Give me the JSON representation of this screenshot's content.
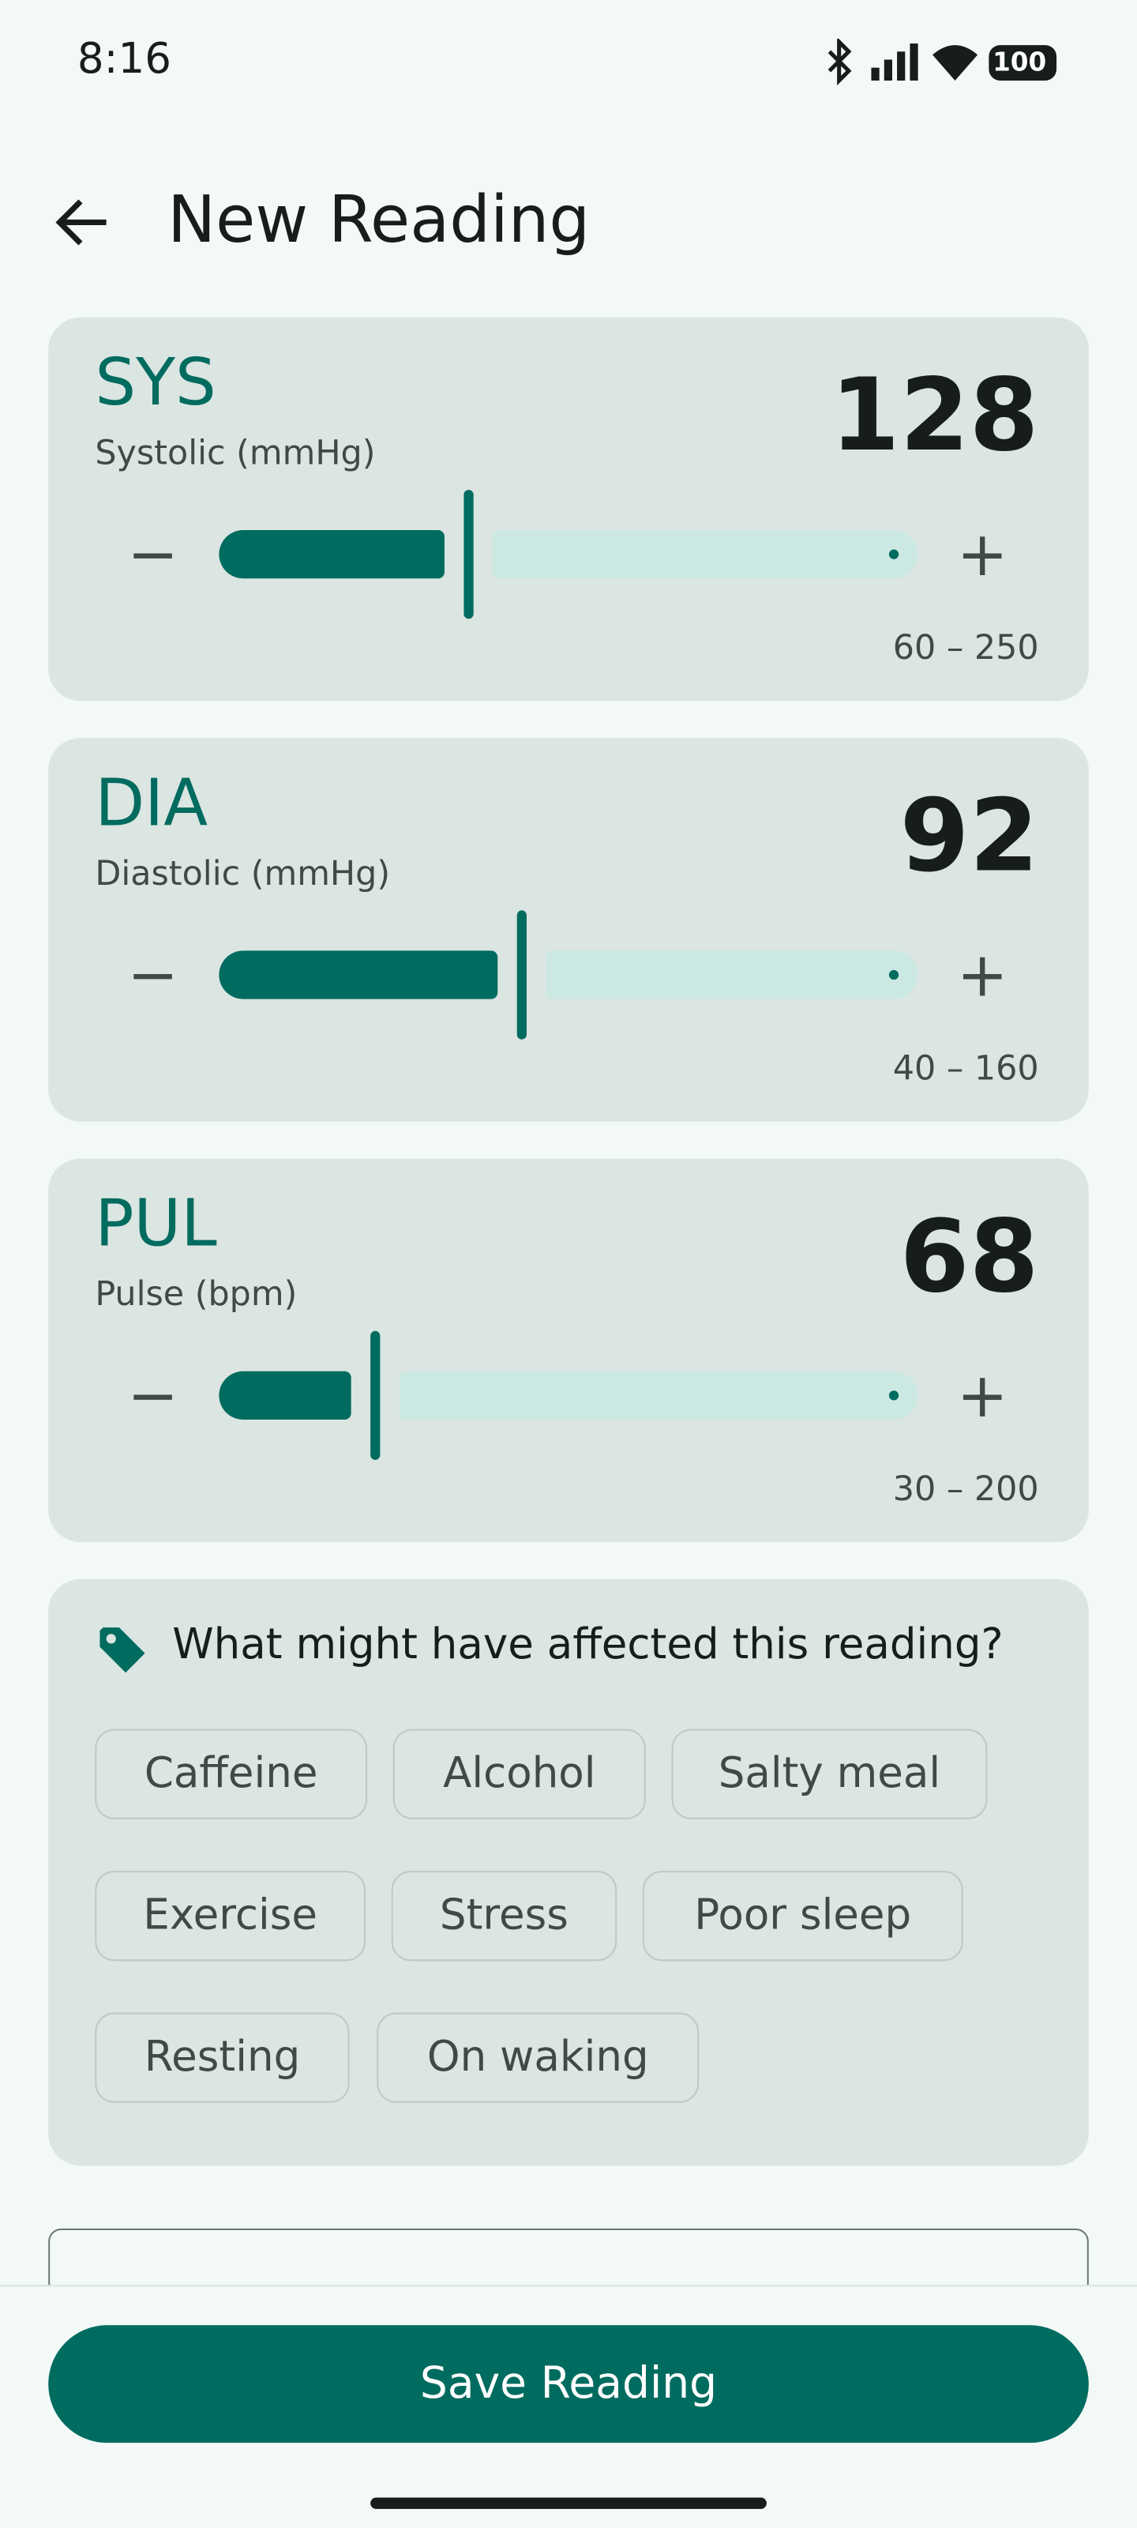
{
  "status_bar": {
    "time": "8:16",
    "battery": "100"
  },
  "header": {
    "title": "New Reading"
  },
  "readings": [
    {
      "code": "SYS",
      "label": "Systolic (mmHg)",
      "value": 128,
      "range": {
        "min": 60,
        "max": 250,
        "label": "60 – 250"
      }
    },
    {
      "code": "DIA",
      "label": "Diastolic (mmHg)",
      "value": 92,
      "range": {
        "min": 40,
        "max": 160,
        "label": "40 – 160"
      }
    },
    {
      "code": "PUL",
      "label": "Pulse (bpm)",
      "value": 68,
      "range": {
        "min": 30,
        "max": 200,
        "label": "30 – 200"
      }
    }
  ],
  "tags": {
    "question": "What might have affected this reading?",
    "chips": [
      "Caffeine",
      "Alcohol",
      "Salty meal",
      "Exercise",
      "Stress",
      "Poor sleep",
      "Resting",
      "On waking"
    ]
  },
  "button": {
    "label": "Save Reading"
  }
}
